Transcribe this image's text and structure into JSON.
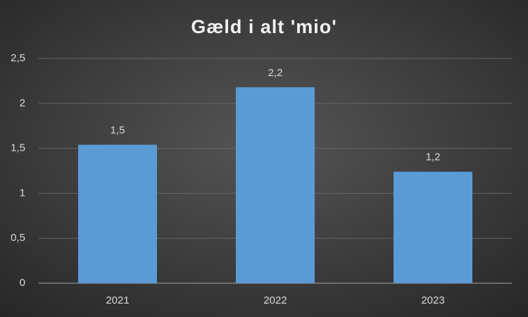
{
  "chart_data": {
    "type": "bar",
    "title": "Gæld i alt 'mio'",
    "categories": [
      "2021",
      "2022",
      "2023"
    ],
    "values": [
      1.54,
      2.18,
      1.24
    ],
    "value_labels": [
      "1,5",
      "2,2",
      "1,2"
    ],
    "color": "#5b9bd5",
    "ylim": [
      0,
      2.5
    ],
    "yticks": [
      0,
      {
        "value": 0.5,
        "label": "0,5"
      },
      1,
      {
        "value": 1.5,
        "label": "1,5"
      },
      2,
      {
        "value": 2.5,
        "label": "2,5"
      }
    ],
    "grid": true
  }
}
